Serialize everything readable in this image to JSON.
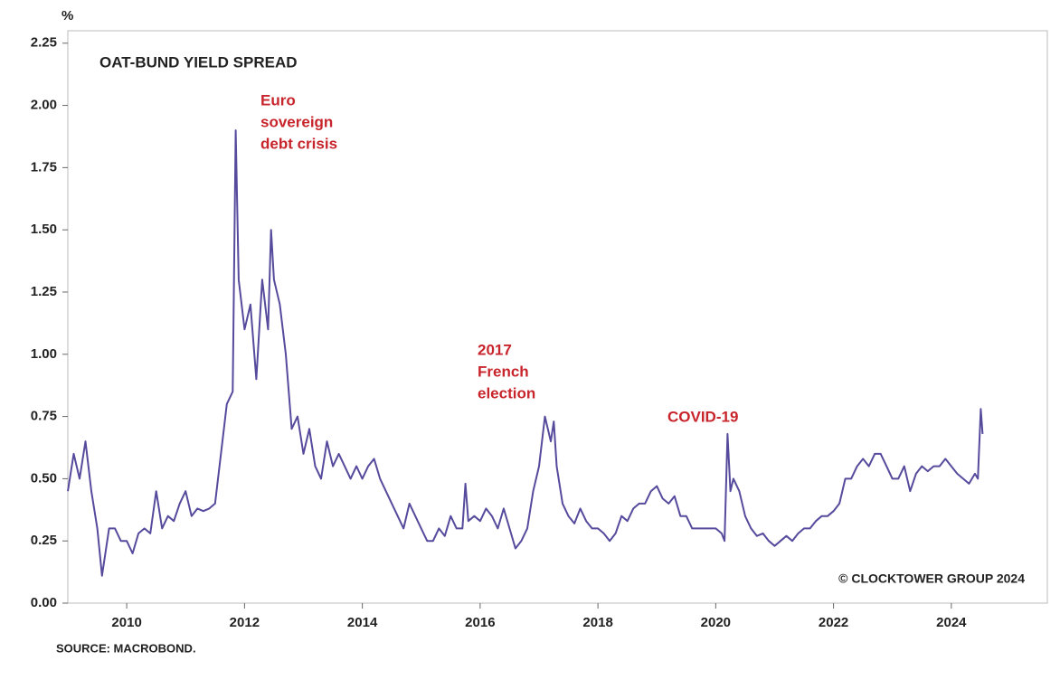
{
  "chart_data": {
    "type": "line",
    "title": "OAT-BUND YIELD SPREAD",
    "y_unit": "%",
    "source": "SOURCE: MACROBOND.",
    "credit": "© CLOCKTOWER GROUP 2024",
    "annotations": [
      [
        "Euro",
        "sovereign",
        "debt crisis"
      ],
      [
        "2017",
        "French",
        "election"
      ],
      [
        "COVID-19"
      ]
    ],
    "xlim": [
      2009,
      2025.63
    ],
    "xticks": [
      2010,
      2012,
      2014,
      2016,
      2018,
      2020,
      2022,
      2024
    ],
    "ylim": [
      0,
      2.3
    ],
    "yticks": [
      {
        "value": 0,
        "label": "0.00"
      },
      0.25,
      {
        "value": 0.5,
        "label": "0.50"
      },
      0.75,
      {
        "value": 1,
        "label": "1.00"
      },
      1.25,
      {
        "value": 1.5,
        "label": "1.50"
      },
      1.75,
      {
        "value": 2,
        "label": "2.00"
      },
      2.25
    ],
    "grid": false,
    "series": [
      {
        "name": "OAT-Bund spread",
        "color": "#554a9c",
        "x": [
          2009.0,
          2009.1,
          2009.2,
          2009.3,
          2009.4,
          2009.5,
          2009.58,
          2009.7,
          2009.8,
          2009.9,
          2010.0,
          2010.1,
          2010.2,
          2010.3,
          2010.4,
          2010.5,
          2010.6,
          2010.7,
          2010.8,
          2010.9,
          2011.0,
          2011.1,
          2011.2,
          2011.3,
          2011.4,
          2011.5,
          2011.6,
          2011.7,
          2011.8,
          2011.85,
          2011.9,
          2012.0,
          2012.1,
          2012.2,
          2012.3,
          2012.4,
          2012.45,
          2012.5,
          2012.6,
          2012.7,
          2012.8,
          2012.9,
          2013.0,
          2013.1,
          2013.2,
          2013.3,
          2013.4,
          2013.5,
          2013.6,
          2013.7,
          2013.8,
          2013.9,
          2014.0,
          2014.1,
          2014.2,
          2014.3,
          2014.4,
          2014.5,
          2014.6,
          2014.7,
          2014.8,
          2014.9,
          2015.0,
          2015.1,
          2015.2,
          2015.3,
          2015.4,
          2015.5,
          2015.6,
          2015.7,
          2015.75,
          2015.8,
          2015.9,
          2016.0,
          2016.1,
          2016.2,
          2016.3,
          2016.4,
          2016.5,
          2016.6,
          2016.7,
          2016.8,
          2016.9,
          2017.0,
          2017.1,
          2017.2,
          2017.25,
          2017.3,
          2017.4,
          2017.5,
          2017.6,
          2017.7,
          2017.8,
          2017.9,
          2018.0,
          2018.1,
          2018.2,
          2018.3,
          2018.4,
          2018.5,
          2018.6,
          2018.7,
          2018.8,
          2018.9,
          2019.0,
          2019.1,
          2019.2,
          2019.3,
          2019.4,
          2019.5,
          2019.6,
          2019.7,
          2019.8,
          2019.9,
          2020.0,
          2020.1,
          2020.15,
          2020.2,
          2020.25,
          2020.3,
          2020.4,
          2020.5,
          2020.6,
          2020.7,
          2020.8,
          2020.9,
          2021.0,
          2021.1,
          2021.2,
          2021.3,
          2021.4,
          2021.5,
          2021.6,
          2021.7,
          2021.8,
          2021.9,
          2022.0,
          2022.1,
          2022.2,
          2022.3,
          2022.4,
          2022.5,
          2022.6,
          2022.7,
          2022.8,
          2022.9,
          2023.0,
          2023.1,
          2023.2,
          2023.3,
          2023.4,
          2023.5,
          2023.6,
          2023.7,
          2023.8,
          2023.9,
          2024.0,
          2024.1,
          2024.2,
          2024.3,
          2024.4,
          2024.45,
          2024.5,
          2024.53
        ],
        "values": [
          0.45,
          0.6,
          0.5,
          0.65,
          0.45,
          0.3,
          0.11,
          0.3,
          0.3,
          0.25,
          0.25,
          0.2,
          0.28,
          0.3,
          0.28,
          0.45,
          0.3,
          0.35,
          0.33,
          0.4,
          0.45,
          0.35,
          0.38,
          0.37,
          0.38,
          0.4,
          0.6,
          0.8,
          0.85,
          1.9,
          1.3,
          1.1,
          1.2,
          0.9,
          1.3,
          1.1,
          1.5,
          1.3,
          1.2,
          1.0,
          0.7,
          0.75,
          0.6,
          0.7,
          0.55,
          0.5,
          0.65,
          0.55,
          0.6,
          0.55,
          0.5,
          0.55,
          0.5,
          0.55,
          0.58,
          0.5,
          0.45,
          0.4,
          0.35,
          0.3,
          0.4,
          0.35,
          0.3,
          0.25,
          0.25,
          0.3,
          0.27,
          0.35,
          0.3,
          0.3,
          0.48,
          0.33,
          0.35,
          0.33,
          0.38,
          0.35,
          0.3,
          0.38,
          0.3,
          0.22,
          0.25,
          0.3,
          0.45,
          0.55,
          0.75,
          0.65,
          0.73,
          0.55,
          0.4,
          0.35,
          0.32,
          0.38,
          0.33,
          0.3,
          0.3,
          0.28,
          0.25,
          0.28,
          0.35,
          0.33,
          0.38,
          0.4,
          0.4,
          0.45,
          0.47,
          0.42,
          0.4,
          0.43,
          0.35,
          0.35,
          0.3,
          0.3,
          0.3,
          0.3,
          0.3,
          0.28,
          0.25,
          0.68,
          0.45,
          0.5,
          0.45,
          0.35,
          0.3,
          0.27,
          0.28,
          0.25,
          0.23,
          0.25,
          0.27,
          0.25,
          0.28,
          0.3,
          0.3,
          0.33,
          0.35,
          0.35,
          0.37,
          0.4,
          0.5,
          0.5,
          0.55,
          0.58,
          0.55,
          0.6,
          0.6,
          0.55,
          0.5,
          0.5,
          0.55,
          0.45,
          0.52,
          0.55,
          0.53,
          0.55,
          0.55,
          0.58,
          0.55,
          0.52,
          0.5,
          0.48,
          0.52,
          0.5,
          0.78,
          0.68
        ]
      }
    ]
  }
}
